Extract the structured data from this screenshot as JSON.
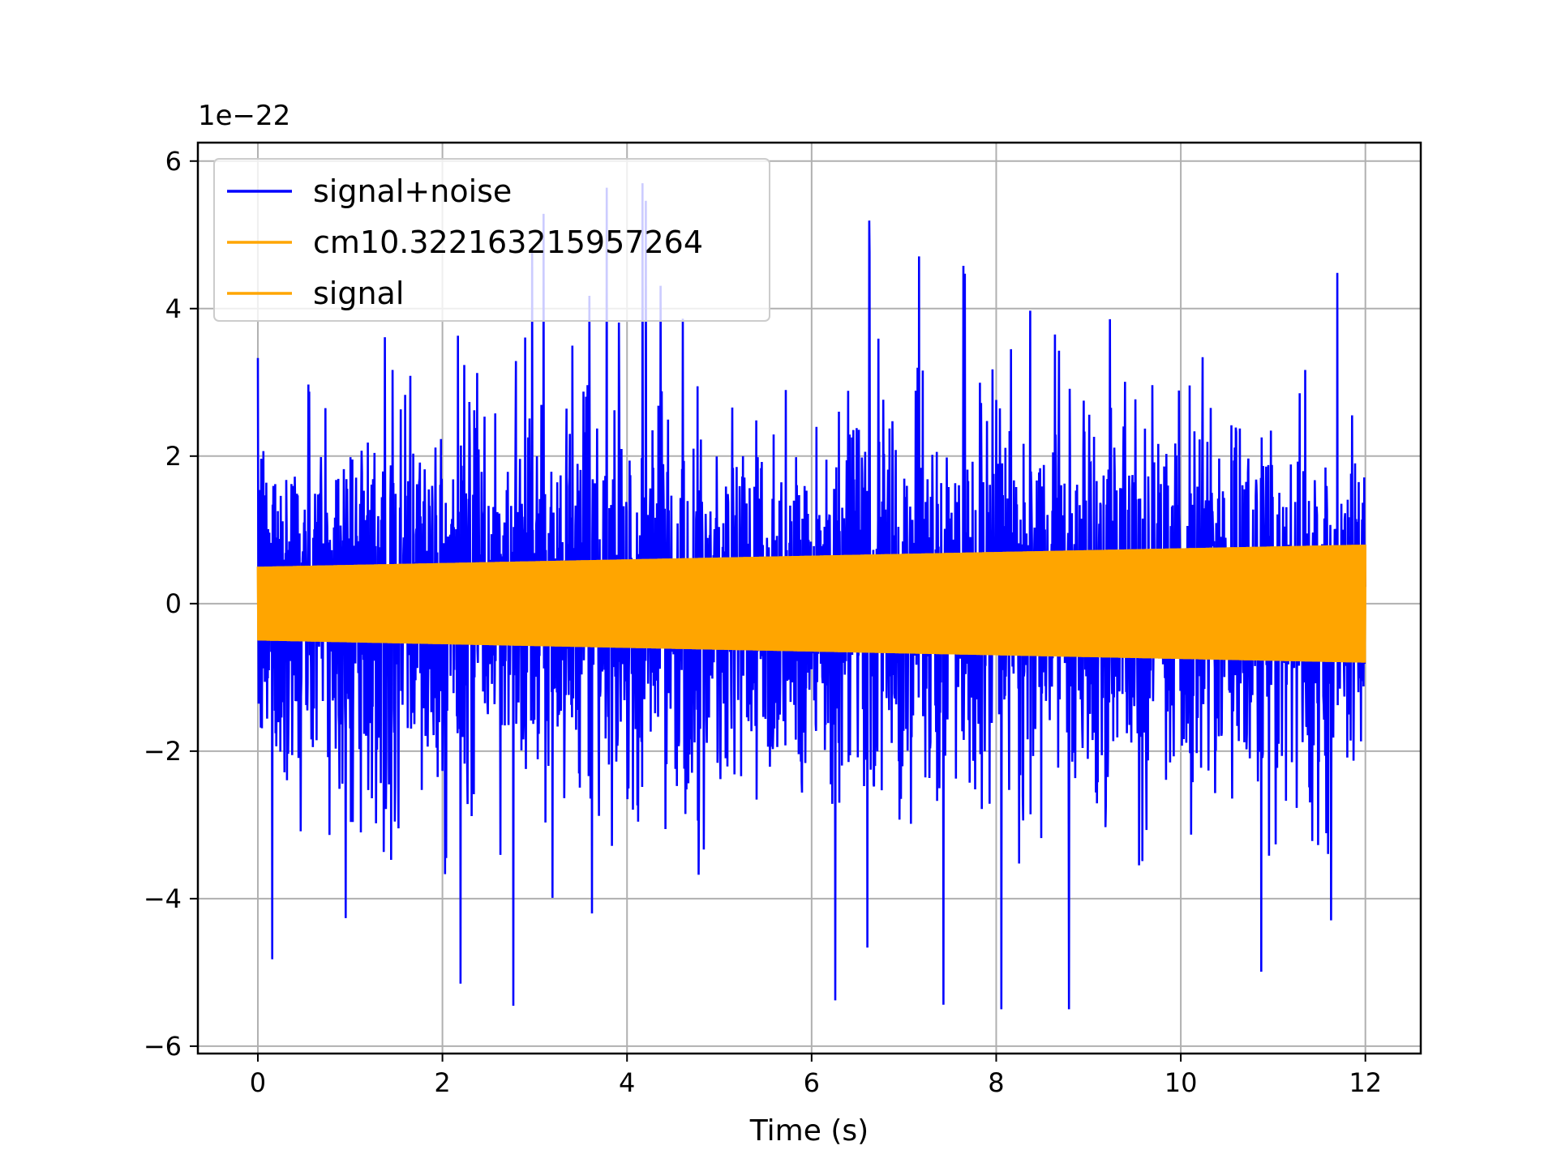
{
  "chart_data": {
    "type": "line",
    "title": "",
    "xlabel": "Time (s)",
    "ylabel": "",
    "y_offset_label": "1e−22",
    "xlim": [
      -0.65,
      12.6
    ],
    "ylim": [
      -6.1,
      6.25
    ],
    "x_ticks": [
      0,
      2,
      4,
      6,
      8,
      10,
      12
    ],
    "x_tick_labels": [
      "0",
      "2",
      "4",
      "6",
      "8",
      "10",
      "12"
    ],
    "y_ticks": [
      -6,
      -4,
      -2,
      0,
      2,
      4,
      6
    ],
    "y_tick_labels": [
      "−6",
      "−4",
      "−2",
      "0",
      "2",
      "4",
      "6"
    ],
    "grid": true,
    "legend_position": "upper-left",
    "series": [
      {
        "name": "signal+noise",
        "color": "#0000ff",
        "t_start": 0,
        "t_end": 12,
        "typical_amplitude": 1.2,
        "max": 5.7,
        "min": -5.5
      },
      {
        "name": "cm10.322163215957264",
        "color": "#ffa500",
        "t_start": 0,
        "t_end": 12,
        "amplitude_start": 0.5,
        "amplitude_end": 0.8
      },
      {
        "name": "signal",
        "color": "#ffa500",
        "t_start": 0,
        "t_end": 12,
        "amplitude_start": 0.5,
        "amplitude_end": 0.8
      }
    ]
  }
}
